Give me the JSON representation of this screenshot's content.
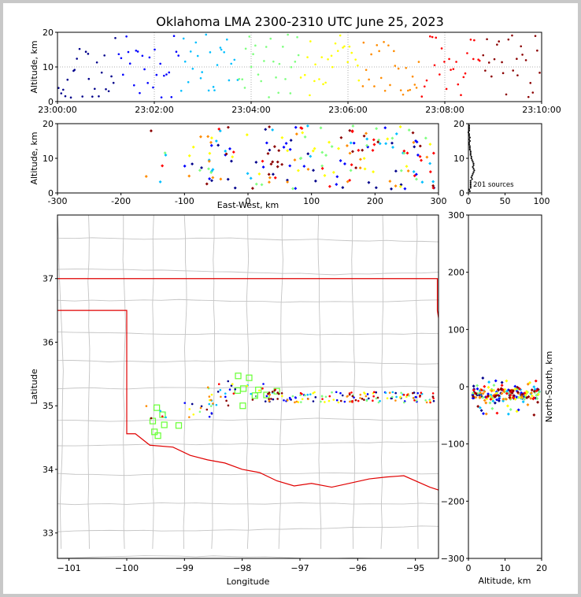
{
  "chart_data": [
    {
      "id": "time-height",
      "type": "scatter",
      "title": "Oklahoma LMA 2300-2310 UTC June 25, 2023",
      "xlabel": "",
      "ylabel": "Altitude, km",
      "x_ticks": [
        "23:00:00",
        "23:02:00",
        "23:04:00",
        "23:06:00",
        "23:08:00",
        "23:10:00"
      ],
      "xlim": [
        0,
        600
      ],
      "ylim": [
        0,
        20
      ],
      "y_ticks": [
        0,
        10,
        20
      ],
      "grid": "dotted",
      "colormap": [
        "#00008b",
        "#0000ff",
        "#00bfff",
        "#7fff7f",
        "#ffff00",
        "#ff8c00",
        "#ff0000",
        "#8b0000"
      ],
      "point_count": 201
    },
    {
      "id": "ew-altitude",
      "type": "scatter",
      "xlabel": "East-West, km",
      "ylabel": "Altitude, km",
      "xlim": [
        -300,
        300
      ],
      "x_ticks": [
        -300,
        -200,
        -100,
        0,
        100,
        200,
        300
      ],
      "ylim": [
        0,
        20
      ],
      "y_ticks": [
        0,
        10,
        20
      ]
    },
    {
      "id": "histogram",
      "type": "scatter",
      "xlim": [
        0,
        100
      ],
      "x_ticks": [
        0,
        50,
        100
      ],
      "ylim": [
        0,
        20
      ],
      "y_ticks": [
        0,
        10,
        20
      ],
      "annotation": "201 sources"
    },
    {
      "id": "plan-view",
      "type": "scatter",
      "xlabel": "Longitude",
      "ylabel": "Latitude",
      "xlim": [
        -101.2,
        -94.6
      ],
      "x_ticks": [
        -101,
        -100,
        -99,
        -98,
        -97,
        -96,
        -95
      ],
      "ylim": [
        32.6,
        38.0
      ],
      "y_ticks": [
        33,
        34,
        35,
        36,
        37
      ],
      "stations": [
        {
          "lon": -99.55,
          "lat": 34.76
        },
        {
          "lon": -99.48,
          "lat": 34.97
        },
        {
          "lon": -99.38,
          "lat": 34.86
        },
        {
          "lon": -99.35,
          "lat": 34.7
        },
        {
          "lon": -99.52,
          "lat": 34.59
        },
        {
          "lon": -99.46,
          "lat": 34.53
        },
        {
          "lon": -99.1,
          "lat": 34.69
        },
        {
          "lon": -98.07,
          "lat": 35.47
        },
        {
          "lon": -98.08,
          "lat": 35.24
        },
        {
          "lon": -97.98,
          "lat": 35.27
        },
        {
          "lon": -97.88,
          "lat": 35.44
        },
        {
          "lon": -97.72,
          "lat": 35.25
        },
        {
          "lon": -97.78,
          "lat": 35.16
        },
        {
          "lon": -97.58,
          "lat": 35.17
        },
        {
          "lon": -97.4,
          "lat": 35.23
        },
        {
          "lon": -97.99,
          "lat": 35.0
        }
      ]
    },
    {
      "id": "ns-altitude",
      "type": "scatter",
      "xlabel": "Altitude, km",
      "ylabel": "North-South, km",
      "xlim": [
        0,
        20
      ],
      "x_ticks": [
        0,
        10,
        20
      ],
      "ylim": [
        -300,
        300
      ],
      "y_ticks": [
        -300,
        -200,
        -100,
        0,
        100,
        200,
        300
      ]
    }
  ]
}
